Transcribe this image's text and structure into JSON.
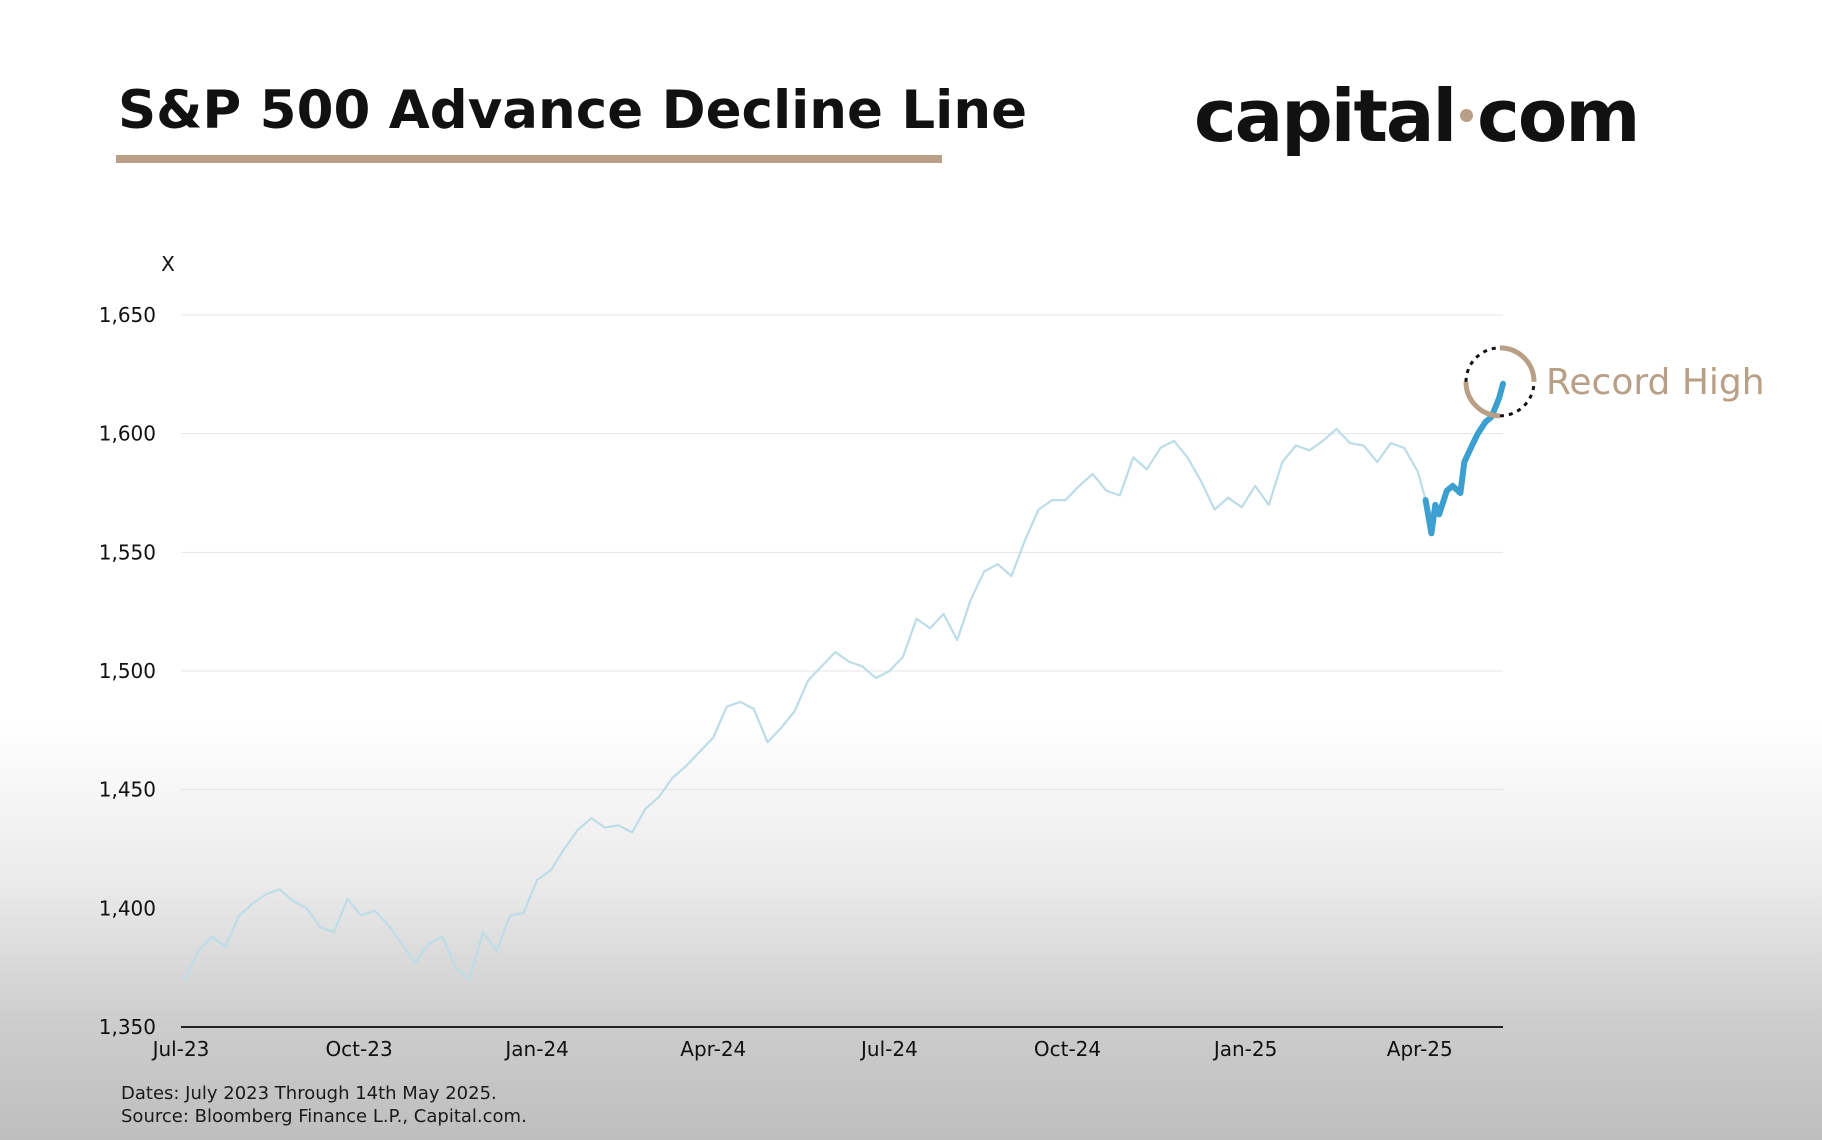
{
  "header": {
    "title": "S&P 500 Advance Decline Line",
    "brand_name_left": "capital",
    "brand_name_right": "com",
    "accent_color": "#b89f85"
  },
  "footnotes": {
    "dates": "Dates: July 2023 Through 14th May 2025.",
    "source": "Source: Bloomberg Finance L.P., Capital.com."
  },
  "chart_data": {
    "type": "line",
    "title": "S&P 500 Advance Decline Line",
    "ylabel": "X",
    "xlabel": "",
    "ylim": [
      1350,
      1650
    ],
    "yticks": [
      1350,
      1400,
      1450,
      1500,
      1550,
      1600,
      1650
    ],
    "ytick_labels": [
      "1,350",
      "1,400",
      "1,450",
      "1,500",
      "1,550",
      "1,600",
      "1,650"
    ],
    "xlim": [
      "2023-07-01",
      "2025-05-14"
    ],
    "xticks": [
      "2023-07-01",
      "2023-10-01",
      "2024-01-01",
      "2024-04-01",
      "2024-07-01",
      "2024-10-01",
      "2025-01-01",
      "2025-04-01"
    ],
    "xtick_labels": [
      "Jul-23",
      "Oct-23",
      "Jan-24",
      "Apr-24",
      "Jul-24",
      "Oct-24",
      "Jan-25",
      "Apr-25"
    ],
    "grid": true,
    "legend": "none",
    "series": [
      {
        "color": "#bcdde8",
        "points": [
          [
            "2023-07-03",
            1370
          ],
          [
            "2023-07-10",
            1382
          ],
          [
            "2023-07-17",
            1388
          ],
          [
            "2023-07-24",
            1384
          ],
          [
            "2023-07-31",
            1397
          ],
          [
            "2023-08-07",
            1402
          ],
          [
            "2023-08-14",
            1406
          ],
          [
            "2023-08-21",
            1408
          ],
          [
            "2023-08-28",
            1403
          ],
          [
            "2023-09-04",
            1400
          ],
          [
            "2023-09-11",
            1392
          ],
          [
            "2023-09-18",
            1390
          ],
          [
            "2023-09-25",
            1404
          ],
          [
            "2023-10-02",
            1397
          ],
          [
            "2023-10-09",
            1399
          ],
          [
            "2023-10-16",
            1393
          ],
          [
            "2023-10-23",
            1385
          ],
          [
            "2023-10-30",
            1377
          ],
          [
            "2023-11-06",
            1385
          ],
          [
            "2023-11-13",
            1388
          ],
          [
            "2023-11-20",
            1375
          ],
          [
            "2023-11-27",
            1370
          ],
          [
            "2023-12-04",
            1390
          ],
          [
            "2023-12-11",
            1382
          ],
          [
            "2023-12-18",
            1397
          ],
          [
            "2023-12-25",
            1398
          ],
          [
            "2024-01-01",
            1412
          ],
          [
            "2024-01-08",
            1416
          ],
          [
            "2024-01-15",
            1425
          ],
          [
            "2024-01-22",
            1433
          ],
          [
            "2024-01-29",
            1438
          ],
          [
            "2024-02-05",
            1434
          ],
          [
            "2024-02-12",
            1435
          ],
          [
            "2024-02-19",
            1432
          ],
          [
            "2024-02-26",
            1442
          ],
          [
            "2024-03-04",
            1447
          ],
          [
            "2024-03-11",
            1455
          ],
          [
            "2024-03-18",
            1460
          ],
          [
            "2024-03-25",
            1466
          ],
          [
            "2024-04-01",
            1472
          ],
          [
            "2024-04-08",
            1485
          ],
          [
            "2024-04-15",
            1487
          ],
          [
            "2024-04-22",
            1484
          ],
          [
            "2024-04-29",
            1470
          ],
          [
            "2024-05-06",
            1476
          ],
          [
            "2024-05-13",
            1483
          ],
          [
            "2024-05-20",
            1496
          ],
          [
            "2024-05-27",
            1502
          ],
          [
            "2024-06-03",
            1508
          ],
          [
            "2024-06-10",
            1504
          ],
          [
            "2024-06-17",
            1502
          ],
          [
            "2024-06-24",
            1497
          ],
          [
            "2024-07-01",
            1500
          ],
          [
            "2024-07-08",
            1506
          ],
          [
            "2024-07-15",
            1522
          ],
          [
            "2024-07-22",
            1518
          ],
          [
            "2024-07-29",
            1524
          ],
          [
            "2024-08-05",
            1513
          ],
          [
            "2024-08-12",
            1530
          ],
          [
            "2024-08-19",
            1542
          ],
          [
            "2024-08-26",
            1545
          ],
          [
            "2024-09-02",
            1540
          ],
          [
            "2024-09-09",
            1555
          ],
          [
            "2024-09-16",
            1568
          ],
          [
            "2024-09-23",
            1572
          ],
          [
            "2024-09-30",
            1572
          ],
          [
            "2024-10-07",
            1578
          ],
          [
            "2024-10-14",
            1583
          ],
          [
            "2024-10-21",
            1576
          ],
          [
            "2024-10-28",
            1574
          ],
          [
            "2024-11-04",
            1590
          ],
          [
            "2024-11-11",
            1585
          ],
          [
            "2024-11-18",
            1594
          ],
          [
            "2024-11-25",
            1597
          ],
          [
            "2024-12-02",
            1590
          ],
          [
            "2024-12-09",
            1580
          ],
          [
            "2024-12-16",
            1568
          ],
          [
            "2024-12-23",
            1573
          ],
          [
            "2024-12-30",
            1569
          ],
          [
            "2025-01-06",
            1578
          ],
          [
            "2025-01-13",
            1570
          ],
          [
            "2025-01-20",
            1588
          ],
          [
            "2025-01-27",
            1595
          ],
          [
            "2025-02-03",
            1593
          ],
          [
            "2025-02-10",
            1597
          ],
          [
            "2025-02-17",
            1602
          ],
          [
            "2025-02-24",
            1596
          ],
          [
            "2025-03-03",
            1595
          ],
          [
            "2025-03-10",
            1588
          ],
          [
            "2025-03-17",
            1596
          ],
          [
            "2025-03-24",
            1594
          ],
          [
            "2025-03-31",
            1584
          ],
          [
            "2025-04-04",
            1572
          ]
        ]
      },
      {
        "color": "#3b9fd0",
        "points": [
          [
            "2025-04-04",
            1572
          ],
          [
            "2025-04-07",
            1558
          ],
          [
            "2025-04-09",
            1570
          ],
          [
            "2025-04-11",
            1566
          ],
          [
            "2025-04-15",
            1576
          ],
          [
            "2025-04-18",
            1578
          ],
          [
            "2025-04-22",
            1575
          ],
          [
            "2025-04-24",
            1588
          ],
          [
            "2025-04-28",
            1595
          ],
          [
            "2025-05-01",
            1600
          ],
          [
            "2025-05-05",
            1605
          ],
          [
            "2025-05-08",
            1607
          ],
          [
            "2025-05-12",
            1615
          ],
          [
            "2025-05-14",
            1621
          ]
        ]
      }
    ],
    "annotations": [
      {
        "text": "Record High",
        "x": "2025-05-14",
        "y": 1621,
        "color": "#b89f85"
      }
    ]
  }
}
